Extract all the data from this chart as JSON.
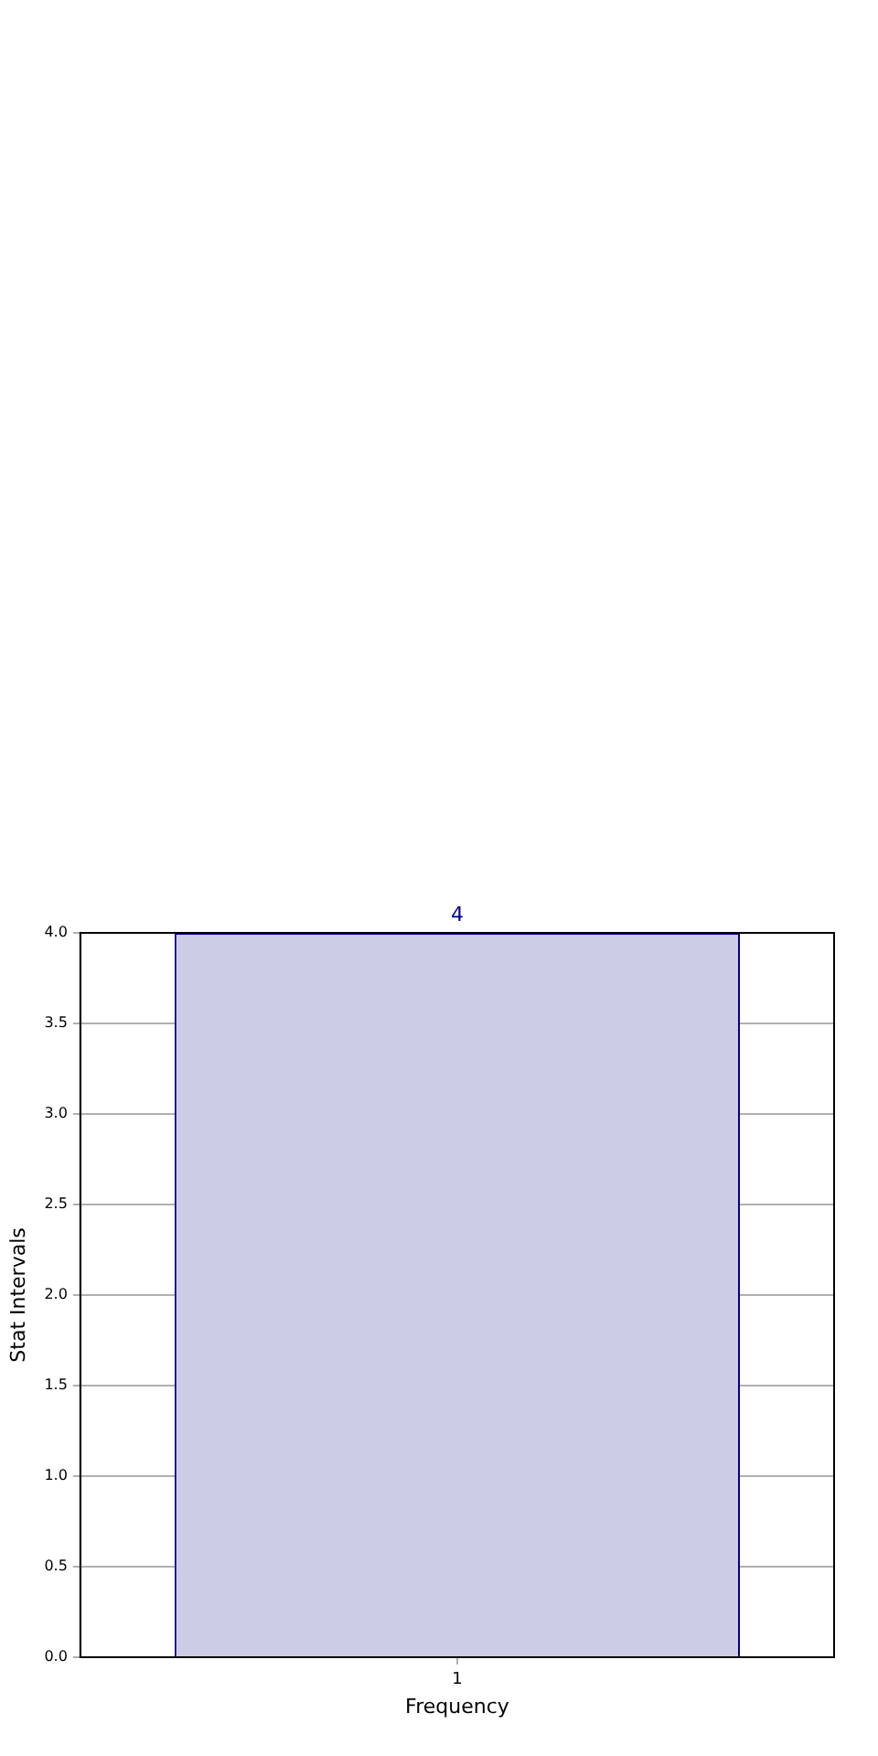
{
  "chart_data": {
    "type": "bar",
    "xlabel": "Frequency",
    "ylabel": "Stat Intervals",
    "categories": [
      "1"
    ],
    "values": [
      4
    ],
    "color": "#cccce6",
    "ylim": [
      0,
      4
    ],
    "yticks": [
      {
        "value": 0,
        "label": "0.0"
      },
      {
        "value": 0.5,
        "label": "0.5"
      },
      {
        "value": 1,
        "label": "1.0"
      },
      {
        "value": 1.5,
        "label": "1.5"
      },
      {
        "value": 2,
        "label": "2.0"
      },
      {
        "value": 2.5,
        "label": "2.5"
      },
      {
        "value": 3,
        "label": "3.0"
      },
      {
        "value": 3.5,
        "label": "3.5"
      },
      {
        "value": 4,
        "label": "4.0"
      }
    ],
    "grid": true,
    "data_labels": true
  }
}
